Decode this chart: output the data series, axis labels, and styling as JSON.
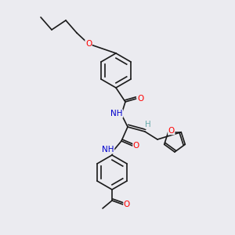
{
  "bg_color": "#ebebf0",
  "bond_color": "#1a1a1a",
  "atom_colors": {
    "O": "#ff0000",
    "N": "#0000cd",
    "H": "#6aacac",
    "C": "#1a1a1a"
  },
  "font_size": 7.5,
  "line_width": 1.2
}
